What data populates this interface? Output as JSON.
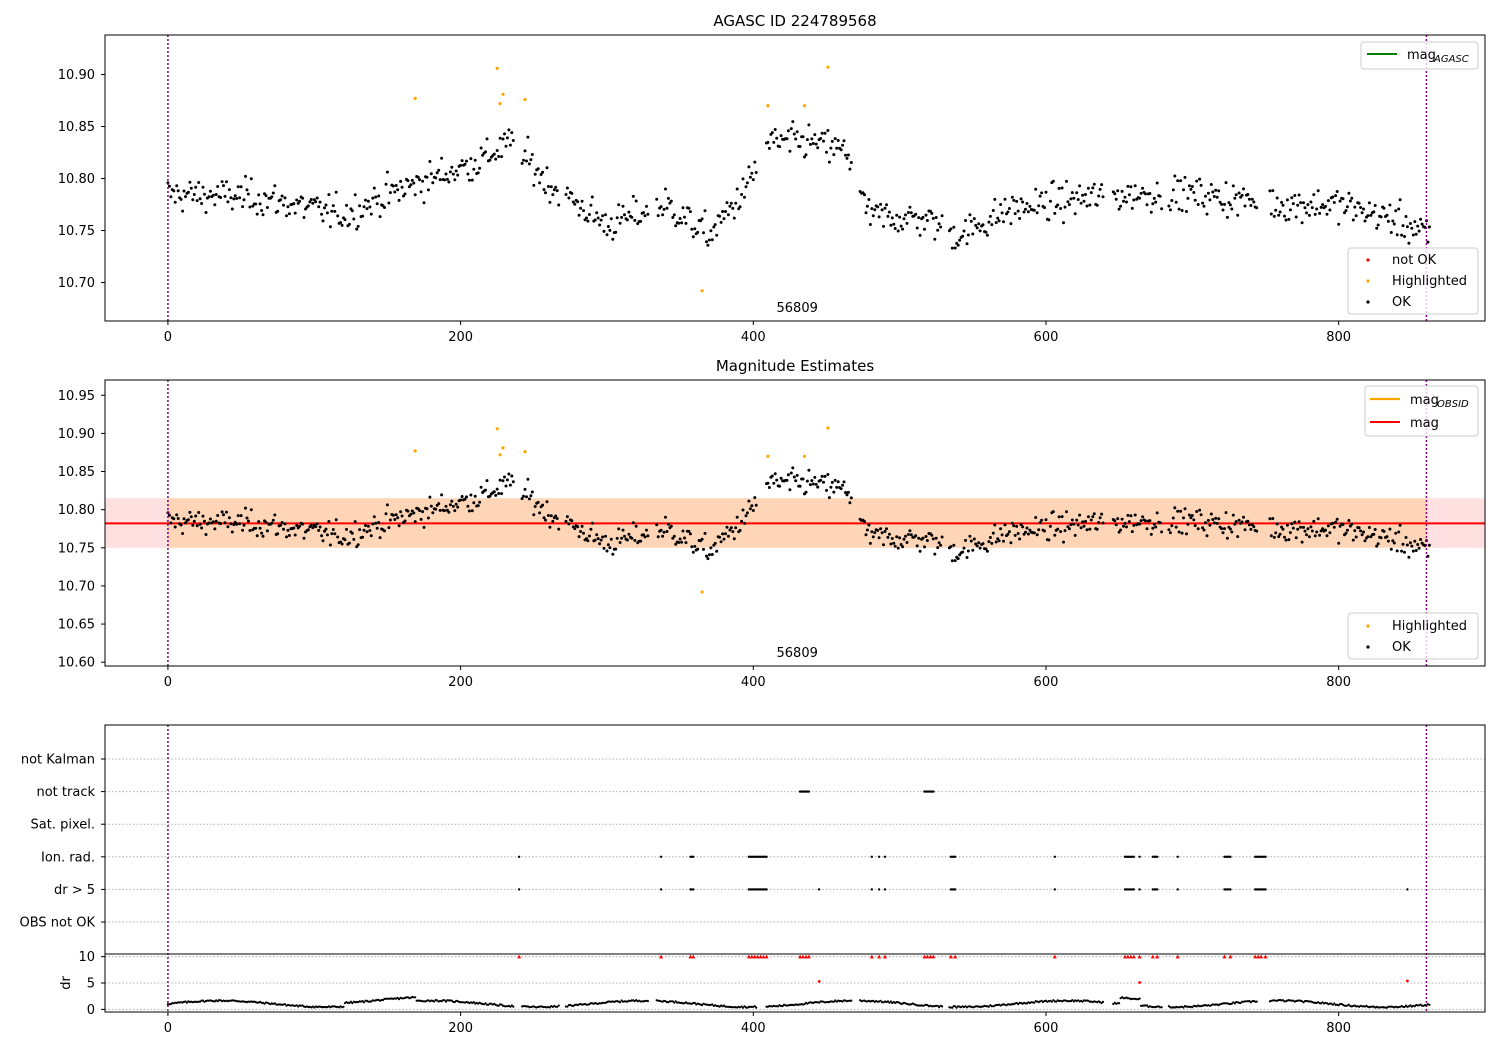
{
  "chart_data": [
    {
      "type": "scatter",
      "title": "AGASC ID 224789568",
      "xlim": [
        -43,
        900
      ],
      "ylim": [
        10.663,
        10.938
      ],
      "xticks": [
        0,
        200,
        400,
        600,
        800
      ],
      "yticks": [
        10.7,
        10.75,
        10.8,
        10.85,
        10.9
      ],
      "ytick_labels": [
        "10.70",
        "10.75",
        "10.80",
        "10.85",
        "10.90"
      ],
      "vlines": [
        0,
        860
      ],
      "obsid_label": {
        "text": "56809",
        "x": 430
      },
      "legend_lines": [
        {
          "name": "mag",
          "sub": "AGASC",
          "color": "#008000"
        }
      ],
      "legend_markers": [
        {
          "name": "not OK",
          "color": "#ff0000"
        },
        {
          "name": "Highlighted",
          "color": "#ffa500"
        },
        {
          "name": "OK",
          "color": "#000000"
        }
      ],
      "highlighted": [
        [
          169,
          10.877
        ],
        [
          225,
          10.906
        ],
        [
          227,
          10.872
        ],
        [
          229,
          10.881
        ],
        [
          244,
          10.876
        ],
        [
          365,
          10.692
        ],
        [
          410,
          10.87
        ],
        [
          435,
          10.87
        ],
        [
          451,
          10.907
        ]
      ]
    },
    {
      "type": "scatter",
      "title": "Magnitude Estimates",
      "xlim": [
        -43,
        900
      ],
      "ylim": [
        10.595,
        10.97
      ],
      "xticks": [
        0,
        200,
        400,
        600,
        800
      ],
      "yticks": [
        10.6,
        10.65,
        10.7,
        10.75,
        10.8,
        10.85,
        10.9,
        10.95
      ],
      "ytick_labels": [
        "10.60",
        "10.65",
        "10.70",
        "10.75",
        "10.80",
        "10.85",
        "10.90",
        "10.95"
      ],
      "vlines": [
        0,
        860
      ],
      "obsid_label": {
        "text": "56809",
        "x": 430
      },
      "mag_line": 10.782,
      "mag_band": [
        10.75,
        10.815
      ],
      "mag_obsid_band": [
        10.75,
        10.815
      ],
      "legend_lines": [
        {
          "name": "mag",
          "sub": "OBSID",
          "color": "#ffa500"
        },
        {
          "name": "mag",
          "sub": "",
          "color": "#ff0000"
        }
      ],
      "legend_markers": [
        {
          "name": "Highlighted",
          "color": "#ffa500"
        },
        {
          "name": "OK",
          "color": "#000000"
        }
      ],
      "highlighted": [
        [
          169,
          10.877
        ],
        [
          225,
          10.906
        ],
        [
          227,
          10.872
        ],
        [
          229,
          10.881
        ],
        [
          244,
          10.876
        ],
        [
          365,
          10.692
        ],
        [
          410,
          10.87
        ],
        [
          435,
          10.87
        ],
        [
          451,
          10.907
        ]
      ]
    },
    {
      "type": "scatter",
      "title": "",
      "xlim": [
        -43,
        900
      ],
      "flag_labels": [
        "not Kalman",
        "not track",
        "Sat. pixel.",
        "Ion. rad.",
        "dr > 5",
        "OBS not OK"
      ],
      "flags": {
        "not track": [
          [
            432,
            438
          ],
          [
            517,
            523
          ]
        ],
        "Ion. rad.": [
          [
            240,
            240
          ],
          [
            337,
            337
          ],
          [
            357,
            359
          ],
          [
            397,
            409
          ],
          [
            481,
            481
          ],
          [
            486,
            486
          ],
          [
            490,
            490
          ],
          [
            535,
            538
          ],
          [
            606,
            606
          ],
          [
            654,
            660
          ],
          [
            664,
            664
          ],
          [
            673,
            676
          ],
          [
            690,
            690
          ],
          [
            722,
            726
          ],
          [
            743,
            750
          ]
        ],
        "dr > 5": [
          [
            240,
            240
          ],
          [
            337,
            337
          ],
          [
            357,
            359
          ],
          [
            397,
            409
          ],
          [
            445,
            445
          ],
          [
            481,
            481
          ],
          [
            486,
            486
          ],
          [
            490,
            490
          ],
          [
            535,
            538
          ],
          [
            606,
            606
          ],
          [
            654,
            660
          ],
          [
            664,
            664
          ],
          [
            673,
            676
          ],
          [
            690,
            690
          ],
          [
            722,
            726
          ],
          [
            743,
            750
          ],
          [
            847,
            847
          ]
        ]
      },
      "dr_panel": {
        "ylabel": "dr",
        "yticks": [
          0,
          5,
          10
        ],
        "ylim": [
          -0.5,
          10.5
        ],
        "capped_at": 10,
        "capped_x": [
          240,
          337,
          357,
          359,
          397,
          399,
          401,
          403,
          405,
          407,
          409,
          432,
          434,
          436,
          438,
          481,
          486,
          490,
          517,
          519,
          521,
          523,
          535,
          538,
          606,
          654,
          656,
          658,
          660,
          664,
          673,
          676,
          690,
          722,
          726,
          743,
          745,
          747,
          750
        ],
        "outliers": [
          [
            445,
            5.3
          ],
          [
            664,
            5.1
          ],
          [
            847,
            5.4
          ]
        ]
      }
    }
  ]
}
